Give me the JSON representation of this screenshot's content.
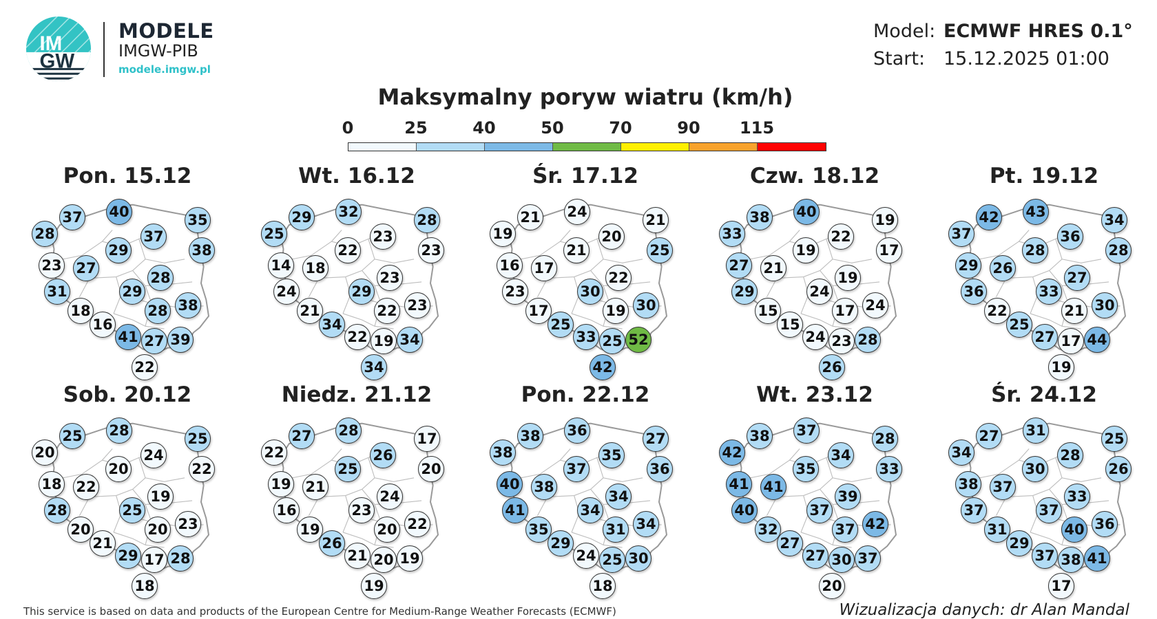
{
  "header": {
    "logo_text_top": "IM",
    "logo_text_bottom": "GW",
    "brand_title": "MODELE",
    "brand_subtitle": "IMGW-PIB",
    "brand_url": "modele.imgw.pl"
  },
  "info": {
    "model_label": "Model:",
    "model_value": "ECMWF HRES 0.1°",
    "start_label": "Start:",
    "start_value": "15.12.2025 01:00"
  },
  "title": "Maksymalny poryw wiatru (km/h)",
  "legend": {
    "ticks": [
      "0",
      "25",
      "40",
      "50",
      "70",
      "90",
      "115"
    ],
    "colors": [
      "#f2f9fd",
      "#b2dcf5",
      "#7cb9e6",
      "#6fba45",
      "#ffef00",
      "#f8a22c",
      "#ff0000"
    ]
  },
  "bins": [
    {
      "min": 0,
      "max": 25,
      "color": "#f2f9fd"
    },
    {
      "min": 25,
      "max": 40,
      "color": "#b2dcf5"
    },
    {
      "min": 40,
      "max": 50,
      "color": "#7cb9e6"
    },
    {
      "min": 50,
      "max": 70,
      "color": "#6fba45"
    },
    {
      "min": 70,
      "max": 90,
      "color": "#ffef00"
    },
    {
      "min": 90,
      "max": 115,
      "color": "#f8a22c"
    },
    {
      "min": 115,
      "max": 1000,
      "color": "#ff0000"
    }
  ],
  "days": [
    {
      "label": "Pon. 15.12",
      "values": [
        28,
        37,
        40,
        37,
        35,
        38,
        23,
        27,
        29,
        28,
        31,
        29,
        18,
        28,
        38,
        16,
        41,
        27,
        39,
        22
      ]
    },
    {
      "label": "Wt. 16.12",
      "values": [
        25,
        29,
        32,
        23,
        28,
        23,
        14,
        18,
        22,
        23,
        24,
        29,
        21,
        22,
        23,
        34,
        22,
        19,
        34,
        34
      ]
    },
    {
      "label": "Śr. 17.12",
      "values": [
        19,
        21,
        24,
        20,
        21,
        25,
        16,
        17,
        21,
        22,
        23,
        30,
        17,
        19,
        30,
        25,
        33,
        25,
        52,
        42
      ]
    },
    {
      "label": "Czw. 18.12",
      "values": [
        33,
        38,
        40,
        22,
        19,
        17,
        27,
        21,
        19,
        19,
        29,
        24,
        15,
        17,
        24,
        15,
        24,
        23,
        28,
        26
      ]
    },
    {
      "label": "Pt. 19.12",
      "values": [
        37,
        42,
        43,
        36,
        34,
        28,
        29,
        26,
        28,
        27,
        36,
        33,
        22,
        21,
        30,
        25,
        27,
        17,
        44,
        19
      ]
    },
    {
      "label": "Sob. 20.12",
      "values": [
        20,
        25,
        28,
        24,
        25,
        22,
        18,
        22,
        20,
        19,
        28,
        25,
        20,
        20,
        23,
        21,
        29,
        17,
        28,
        18
      ]
    },
    {
      "label": "Niedz. 21.12",
      "values": [
        22,
        27,
        28,
        26,
        17,
        20,
        19,
        21,
        25,
        24,
        16,
        23,
        19,
        20,
        22,
        26,
        21,
        20,
        19,
        19
      ]
    },
    {
      "label": "Pon. 22.12",
      "values": [
        38,
        38,
        36,
        35,
        27,
        36,
        40,
        38,
        37,
        34,
        41,
        34,
        35,
        31,
        34,
        29,
        24,
        25,
        30,
        18
      ]
    },
    {
      "label": "Wt. 23.12",
      "values": [
        42,
        38,
        37,
        34,
        28,
        33,
        41,
        41,
        35,
        39,
        40,
        37,
        32,
        37,
        42,
        27,
        27,
        30,
        37,
        20
      ]
    },
    {
      "label": "Śr. 24.12",
      "values": [
        34,
        27,
        31,
        28,
        25,
        26,
        38,
        37,
        30,
        33,
        37,
        37,
        31,
        40,
        36,
        29,
        37,
        38,
        41,
        17
      ]
    }
  ],
  "footer": {
    "attribution": "This service is based on data and products of the European Centre for Medium-Range Weather Forecasts (ECMWF)",
    "credit": "Wizualizacja danych: dr Alan Mandal"
  }
}
